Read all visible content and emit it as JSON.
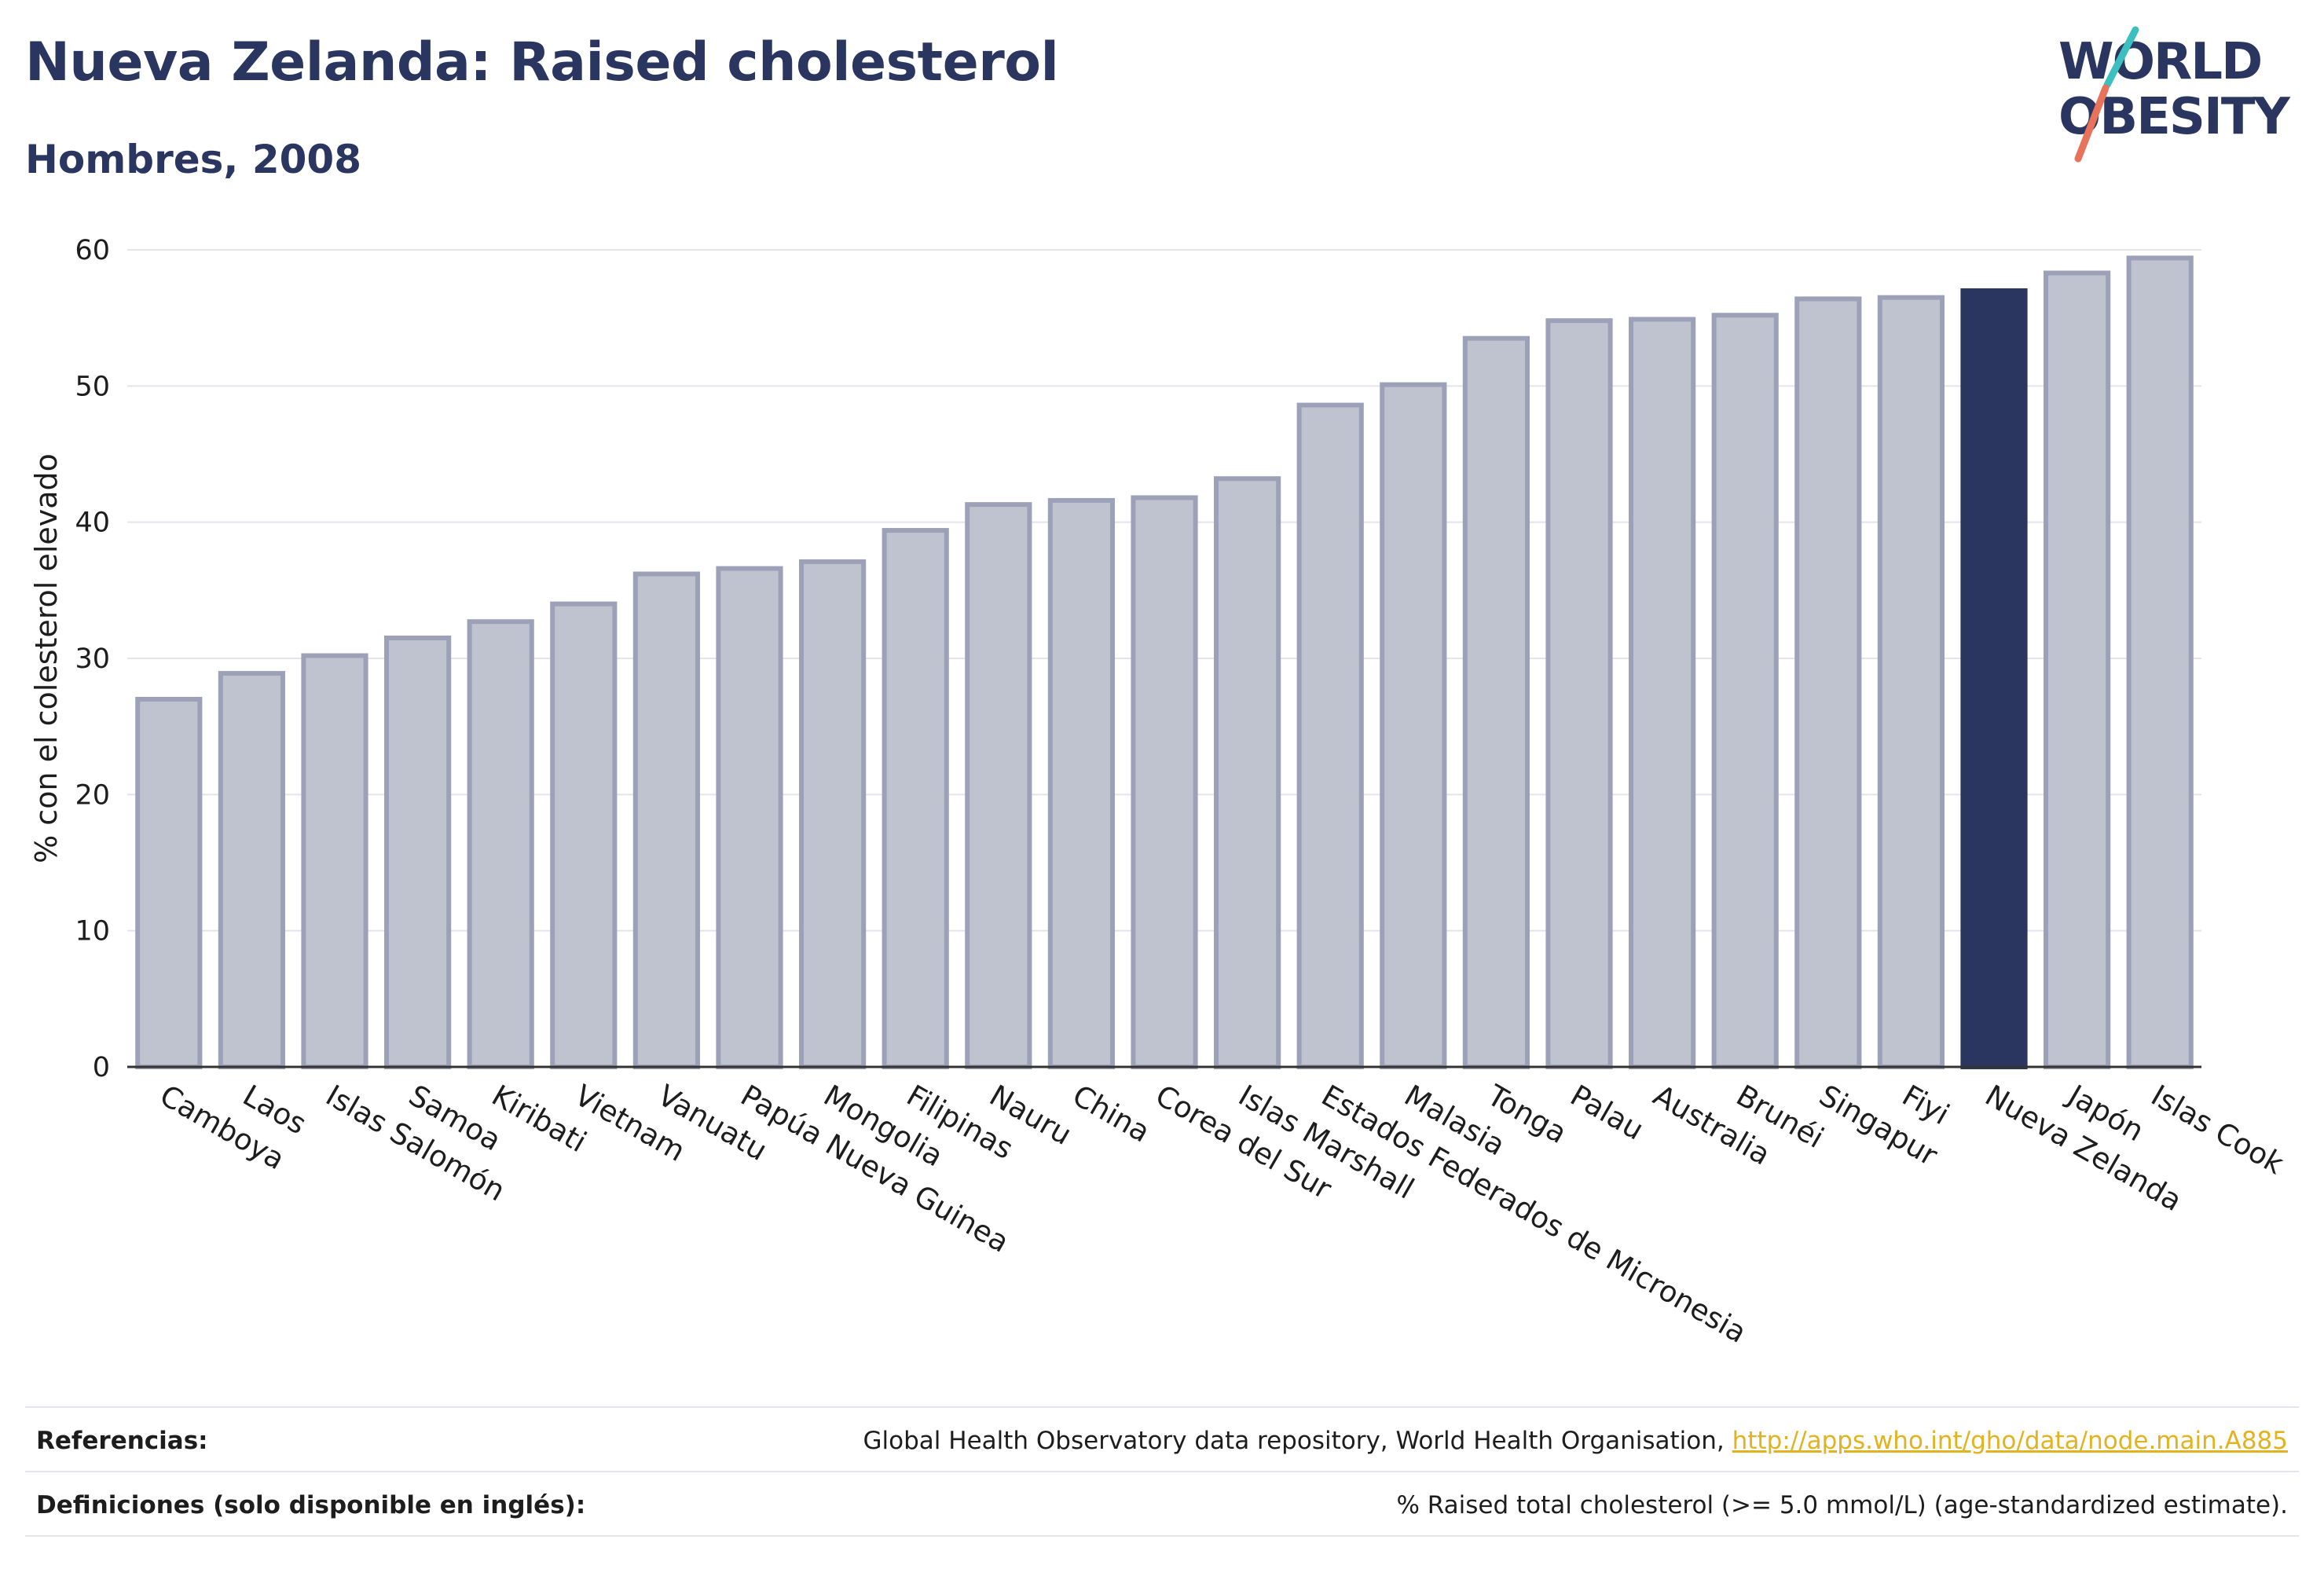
{
  "header": {
    "title": "Nueva Zelanda: Raised cholesterol",
    "subtitle": "Hombres, 2008"
  },
  "logo": {
    "line1": "WORLD",
    "line2": "OBESITY",
    "text_color": "#2a3560",
    "slash_top_color": "#3bbfbf",
    "slash_bottom_color": "#e8735a"
  },
  "colors": {
    "bar_fill": "#bfc2cf",
    "bar_stroke": "#9ca1b8",
    "highlight_fill": "#2a3560",
    "grid": "#e4e4ea",
    "axis": "#333333"
  },
  "chart_data": {
    "type": "bar",
    "title": "Nueva Zelanda: Raised cholesterol",
    "subtitle": "Hombres, 2008",
    "xlabel": "",
    "ylabel": "% con el colesterol elevado",
    "ylim": [
      0,
      60
    ],
    "yticks": [
      0,
      10,
      20,
      30,
      40,
      50,
      60
    ],
    "grid": true,
    "highlight": "Nueva Zelanda",
    "categories": [
      "Camboya",
      "Laos",
      "Islas Salomón",
      "Samoa",
      "Kiribati",
      "Vietnam",
      "Vanuatu",
      "Papúa Nueva Guinea",
      "Mongolia",
      "Filipinas",
      "Nauru",
      "China",
      "Corea del Sur",
      "Islas Marshall",
      "Estados Federados de Micronesia",
      "Malasia",
      "Tonga",
      "Palau",
      "Australia",
      "Brunéi",
      "Singapur",
      "Fiyi",
      "Nueva Zelanda",
      "Japón",
      "Islas Cook"
    ],
    "values": [
      27.0,
      28.9,
      30.2,
      31.5,
      32.7,
      34.0,
      36.2,
      36.6,
      37.1,
      39.4,
      41.3,
      41.6,
      41.8,
      43.2,
      48.6,
      50.1,
      53.5,
      54.8,
      54.9,
      55.2,
      56.4,
      56.5,
      57.0,
      58.3,
      59.4
    ]
  },
  "footer": {
    "references_label": "Referencias:",
    "references_text": "Global Health Observatory data repository, World Health Organisation, ",
    "references_link": "http://apps.who.int/gho/data/node.main.A885",
    "definitions_label": "Definiciones (solo disponible en inglés):",
    "definitions_text": "% Raised total cholesterol (>= 5.0 mmol/L) (age-standardized estimate)."
  }
}
